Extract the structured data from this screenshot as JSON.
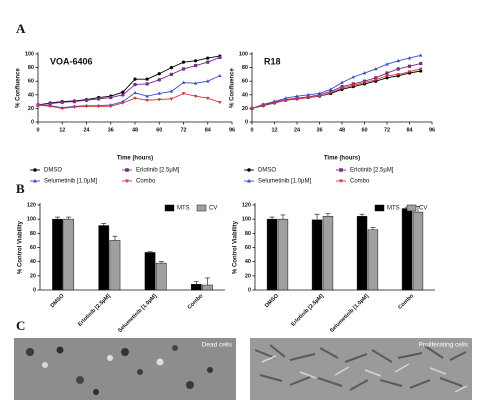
{
  "panels": [
    "A",
    "B",
    "C"
  ],
  "images": [
    {
      "label": "Dead cells"
    },
    {
      "label": "Proliferating cells"
    }
  ],
  "chart_data": [
    {
      "type": "line",
      "title": "VOA-6406",
      "x_label": "Time (hours)",
      "y_label": "% Confluence",
      "x": [
        0,
        6,
        12,
        18,
        24,
        30,
        36,
        42,
        48,
        54,
        60,
        66,
        72,
        78,
        84,
        90
      ],
      "xlim": [
        0,
        96
      ],
      "xticks": [
        0,
        12,
        24,
        36,
        48,
        60,
        72,
        84,
        96
      ],
      "ylim": [
        0,
        100
      ],
      "yticks": [
        0,
        20,
        40,
        60,
        80,
        100
      ],
      "series": [
        {
          "name": "DMSO",
          "color": "#000000",
          "marker": "circle",
          "values": [
            25,
            28,
            30,
            31,
            33,
            36,
            38,
            44,
            63,
            63,
            71,
            80,
            88,
            90,
            94,
            97
          ]
        },
        {
          "name": "Erlotinib [2.5µM]",
          "color": "#7b2a8c",
          "marker": "square",
          "values": [
            25,
            27,
            29,
            30,
            32,
            34,
            36,
            40,
            55,
            56,
            62,
            70,
            78,
            83,
            88,
            95
          ]
        },
        {
          "name": "Selumetinib [1.0µM]",
          "color": "#3a4fc4",
          "marker": "triangle",
          "values": [
            25,
            24,
            21,
            23,
            24,
            24,
            25,
            30,
            43,
            38,
            42,
            45,
            58,
            57,
            60,
            68
          ]
        },
        {
          "name": "Combo",
          "color": "#d6353a",
          "marker": "triangle-down",
          "values": [
            25,
            23,
            20,
            22,
            23,
            23,
            23,
            28,
            35,
            32,
            33,
            34,
            42,
            38,
            35,
            29
          ]
        }
      ]
    },
    {
      "type": "line",
      "title": "R18",
      "x_label": "Time (hours)",
      "y_label": "% Confluence",
      "x": [
        0,
        6,
        12,
        18,
        24,
        30,
        36,
        42,
        48,
        54,
        60,
        66,
        72,
        78,
        84,
        90
      ],
      "xlim": [
        0,
        96
      ],
      "xticks": [
        0,
        12,
        24,
        36,
        48,
        60,
        72,
        84,
        96
      ],
      "ylim": [
        0,
        100
      ],
      "yticks": [
        0,
        20,
        40,
        60,
        80,
        100
      ],
      "series": [
        {
          "name": "DMSO",
          "color": "#000000",
          "marker": "circle",
          "values": [
            20,
            24,
            28,
            32,
            34,
            36,
            38,
            42,
            48,
            52,
            56,
            60,
            65,
            68,
            72,
            75
          ]
        },
        {
          "name": "Erlotinib [2.5µM]",
          "color": "#7b2a8c",
          "marker": "square",
          "values": [
            20,
            25,
            29,
            33,
            35,
            37,
            40,
            45,
            52,
            56,
            60,
            65,
            72,
            78,
            82,
            86
          ]
        },
        {
          "name": "Selumetinib [1.0µM]",
          "color": "#3a4fc4",
          "marker": "triangle",
          "values": [
            20,
            26,
            30,
            35,
            38,
            40,
            42,
            48,
            58,
            66,
            72,
            78,
            85,
            90,
            94,
            98
          ]
        },
        {
          "name": "Combo",
          "color": "#d6353a",
          "marker": "triangle-down",
          "values": [
            20,
            24,
            28,
            32,
            34,
            36,
            38,
            43,
            50,
            54,
            58,
            62,
            68,
            70,
            74,
            78
          ]
        }
      ]
    },
    {
      "type": "bar",
      "y_label": "% Control Viability",
      "categories": [
        "DMSO",
        "Erlotinib [2.5µM]",
        "Selumetinib [1.0µM]",
        "Combo"
      ],
      "ylim": [
        0,
        120
      ],
      "yticks": [
        0,
        20,
        40,
        60,
        80,
        100,
        120
      ],
      "series": [
        {
          "name": "MTS",
          "color": "#000000",
          "values": [
            100,
            91,
            53,
            8
          ],
          "errors": [
            3,
            3,
            1,
            4
          ]
        },
        {
          "name": "CV",
          "color": "#a0a0a0",
          "values": [
            100,
            70,
            38,
            7
          ],
          "errors": [
            3,
            6,
            2,
            10
          ]
        }
      ]
    },
    {
      "type": "bar",
      "y_label": "% Control Viability",
      "categories": [
        "DMSO",
        "Erlotinib [2.5µM]",
        "Selumetinib [1.0µM]",
        "Combo"
      ],
      "ylim": [
        0,
        120
      ],
      "yticks": [
        0,
        20,
        40,
        60,
        80,
        100,
        120
      ],
      "series": [
        {
          "name": "MTS",
          "color": "#000000",
          "values": [
            100,
            99,
            104,
            115
          ],
          "errors": [
            3,
            8,
            3,
            2
          ]
        },
        {
          "name": "CV",
          "color": "#a0a0a0",
          "values": [
            100,
            104,
            85,
            110
          ],
          "errors": [
            6,
            4,
            3,
            8
          ]
        }
      ]
    }
  ]
}
